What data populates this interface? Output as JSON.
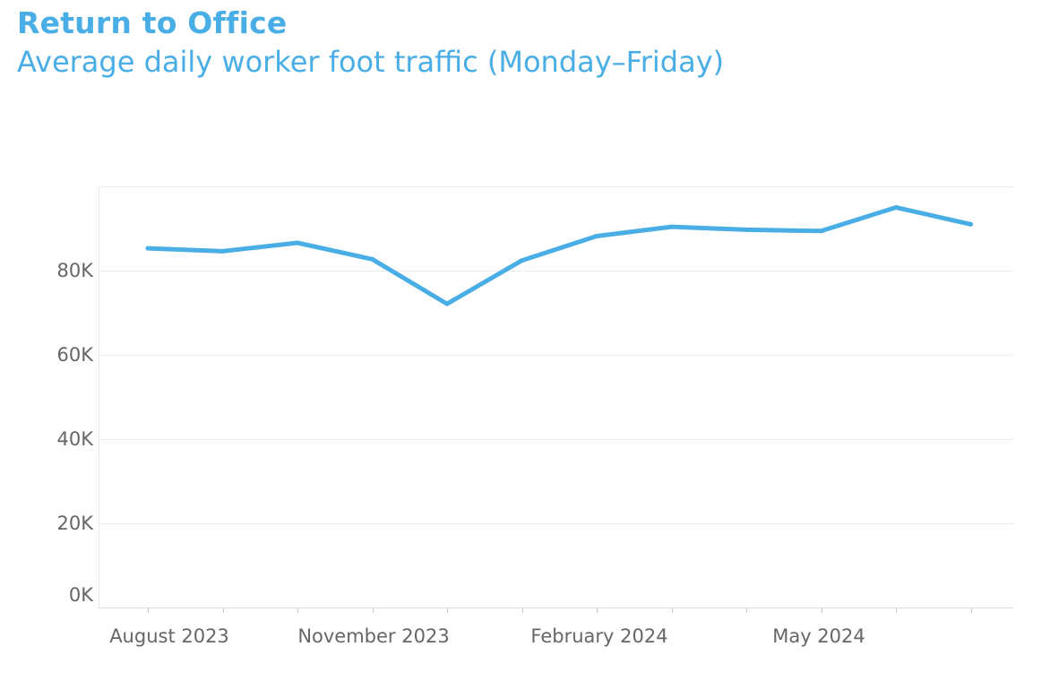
{
  "chart_data": {
    "type": "line",
    "title": "Return to Office",
    "subtitle": "Average daily worker foot traffic (Monday–Friday)",
    "xlabel": "",
    "ylabel": "",
    "x": [
      "2023-08",
      "2023-09",
      "2023-10",
      "2023-11",
      "2023-12",
      "2024-01",
      "2024-02",
      "2024-03",
      "2024-04",
      "2024-05",
      "2024-06",
      "2024-07"
    ],
    "x_tick_labels": [
      "August 2023",
      "November 2023",
      "February 2024",
      "May 2024"
    ],
    "y_tick_labels": [
      "0K",
      "20K",
      "40K",
      "60K",
      "80K"
    ],
    "y_ticks": [
      0,
      20000,
      40000,
      60000,
      80000
    ],
    "ylim": [
      0,
      100000
    ],
    "series": [
      {
        "values": [
          85300,
          84600,
          86600,
          82700,
          72100,
          82400,
          88200,
          90400,
          89700,
          89400,
          95000,
          91000
        ]
      }
    ],
    "grid": true,
    "line_color": "#4aaee6",
    "title_color": "#4aaee6"
  }
}
